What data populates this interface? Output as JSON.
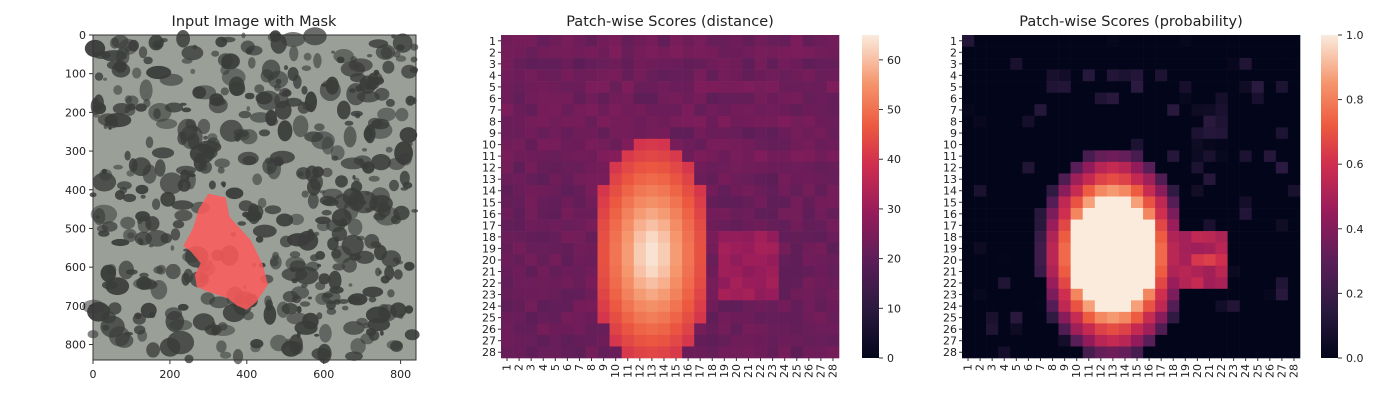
{
  "figure": {
    "panels": [
      {
        "title": "Input Image with Mask",
        "type": "image",
        "x_ticks": [
          "0",
          "200",
          "400",
          "600",
          "800"
        ],
        "y_ticks": [
          "0",
          "100",
          "200",
          "300",
          "400",
          "500",
          "600",
          "700",
          "800"
        ],
        "x_tick_values": [
          0,
          200,
          400,
          600,
          800
        ],
        "y_tick_values": [
          0,
          100,
          200,
          300,
          400,
          500,
          600,
          700,
          800
        ],
        "xlim": [
          0,
          840
        ],
        "ylim": [
          0,
          840
        ],
        "texture_color": "#9aa098",
        "spot_color": "#3a3c3a",
        "mask_color": "#ff5a5a",
        "mask_polygon": [
          [
            300,
            410
          ],
          [
            345,
            420
          ],
          [
            355,
            470
          ],
          [
            410,
            530
          ],
          [
            440,
            590
          ],
          [
            455,
            645
          ],
          [
            425,
            690
          ],
          [
            400,
            710
          ],
          [
            375,
            700
          ],
          [
            350,
            680
          ],
          [
            320,
            670
          ],
          [
            290,
            660
          ],
          [
            270,
            650
          ],
          [
            265,
            620
          ],
          [
            280,
            590
          ],
          [
            255,
            560
          ],
          [
            235,
            545
          ],
          [
            260,
            500
          ],
          [
            275,
            450
          ]
        ]
      }
    ]
  },
  "chart_data": [
    {
      "type": "heatmap",
      "title": "Patch-wise Scores (distance)",
      "xlabel": "",
      "ylabel": "",
      "rows": 28,
      "cols": 28,
      "row_labels": [
        "1",
        "2",
        "3",
        "4",
        "5",
        "6",
        "7",
        "8",
        "9",
        "10",
        "11",
        "12",
        "13",
        "14",
        "15",
        "16",
        "17",
        "18",
        "19",
        "20",
        "21",
        "22",
        "23",
        "24",
        "25",
        "26",
        "27",
        "28"
      ],
      "col_labels": [
        "1",
        "2",
        "3",
        "4",
        "5",
        "6",
        "7",
        "8",
        "9",
        "10",
        "11",
        "12",
        "13",
        "14",
        "15",
        "16",
        "17",
        "18",
        "19",
        "20",
        "21",
        "22",
        "23",
        "24",
        "25",
        "26",
        "27",
        "28"
      ],
      "vmin": 0,
      "vmax": 65,
      "colorbar_ticks": [
        "0",
        "10",
        "20",
        "30",
        "40",
        "50",
        "60"
      ],
      "colorbar_tick_values": [
        0,
        10,
        20,
        30,
        40,
        50,
        60
      ],
      "colormap": "rocket",
      "blob": {
        "center_row": 19.5,
        "center_col": 13,
        "radius_row": 6.5,
        "radius_col": 3.3,
        "peak": 64,
        "base": 22,
        "halo": 40
      }
    },
    {
      "type": "heatmap",
      "title": "Patch-wise Scores (probability)",
      "xlabel": "",
      "ylabel": "",
      "rows": 28,
      "cols": 28,
      "row_labels": [
        "1",
        "2",
        "3",
        "4",
        "5",
        "6",
        "7",
        "8",
        "9",
        "10",
        "11",
        "12",
        "13",
        "14",
        "15",
        "16",
        "17",
        "18",
        "19",
        "20",
        "21",
        "22",
        "23",
        "24",
        "25",
        "26",
        "27",
        "28"
      ],
      "col_labels": [
        "1",
        "2",
        "3",
        "4",
        "5",
        "6",
        "7",
        "8",
        "9",
        "10",
        "11",
        "12",
        "13",
        "14",
        "15",
        "16",
        "17",
        "18",
        "19",
        "20",
        "21",
        "22",
        "23",
        "24",
        "25",
        "26",
        "27",
        "28"
      ],
      "vmin": 0.0,
      "vmax": 1.0,
      "colorbar_ticks": [
        "0.0",
        "0.2",
        "0.4",
        "0.6",
        "0.8",
        "1.0"
      ],
      "colorbar_tick_values": [
        0.0,
        0.2,
        0.4,
        0.6,
        0.8,
        1.0
      ],
      "colormap": "rocket",
      "blob": {
        "center_row": 19.5,
        "center_col": 13,
        "radius_row": 7.0,
        "radius_col": 4.6,
        "peak": 1.0,
        "base": 0.0,
        "halo": 0.6
      }
    }
  ]
}
